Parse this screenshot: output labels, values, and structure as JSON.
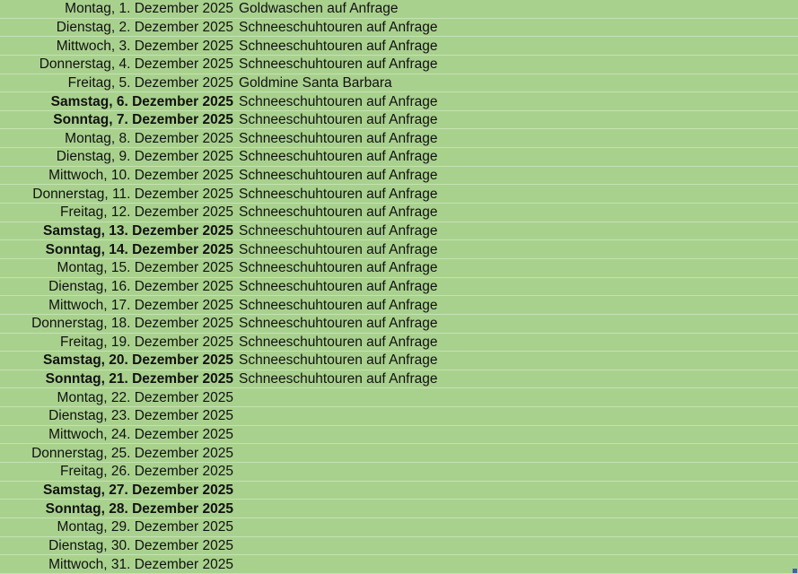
{
  "rows": [
    {
      "date": "Montag, 1. Dezember 2025",
      "activity": "Goldwaschen auf Anfrage",
      "weekend": false
    },
    {
      "date": "Dienstag, 2. Dezember 2025",
      "activity": "Schneeschuhtouren auf Anfrage",
      "weekend": false
    },
    {
      "date": "Mittwoch, 3. Dezember 2025",
      "activity": "Schneeschuhtouren auf Anfrage",
      "weekend": false
    },
    {
      "date": "Donnerstag, 4. Dezember 2025",
      "activity": "Schneeschuhtouren auf Anfrage",
      "weekend": false
    },
    {
      "date": "Freitag, 5. Dezember 2025",
      "activity": "Goldmine Santa Barbara",
      "weekend": false
    },
    {
      "date": "Samstag, 6. Dezember 2025",
      "activity": "Schneeschuhtouren auf Anfrage",
      "weekend": true
    },
    {
      "date": "Sonntag, 7. Dezember 2025",
      "activity": "Schneeschuhtouren auf Anfrage",
      "weekend": true
    },
    {
      "date": "Montag, 8. Dezember 2025",
      "activity": "Schneeschuhtouren auf Anfrage",
      "weekend": false
    },
    {
      "date": "Dienstag, 9. Dezember 2025",
      "activity": "Schneeschuhtouren auf Anfrage",
      "weekend": false
    },
    {
      "date": "Mittwoch, 10. Dezember 2025",
      "activity": "Schneeschuhtouren auf Anfrage",
      "weekend": false
    },
    {
      "date": "Donnerstag, 11. Dezember 2025",
      "activity": "Schneeschuhtouren auf Anfrage",
      "weekend": false
    },
    {
      "date": "Freitag, 12. Dezember 2025",
      "activity": "Schneeschuhtouren auf Anfrage",
      "weekend": false
    },
    {
      "date": "Samstag, 13. Dezember 2025",
      "activity": "Schneeschuhtouren auf Anfrage",
      "weekend": true
    },
    {
      "date": "Sonntag, 14. Dezember 2025",
      "activity": "Schneeschuhtouren auf Anfrage",
      "weekend": true
    },
    {
      "date": "Montag, 15. Dezember 2025",
      "activity": "Schneeschuhtouren auf Anfrage",
      "weekend": false
    },
    {
      "date": "Dienstag, 16. Dezember 2025",
      "activity": "Schneeschuhtouren auf Anfrage",
      "weekend": false
    },
    {
      "date": "Mittwoch, 17. Dezember 2025",
      "activity": "Schneeschuhtouren auf Anfrage",
      "weekend": false
    },
    {
      "date": "Donnerstag, 18. Dezember 2025",
      "activity": "Schneeschuhtouren auf Anfrage",
      "weekend": false
    },
    {
      "date": "Freitag, 19. Dezember 2025",
      "activity": "Schneeschuhtouren auf Anfrage",
      "weekend": false
    },
    {
      "date": "Samstag, 20. Dezember 2025",
      "activity": "Schneeschuhtouren auf Anfrage",
      "weekend": true
    },
    {
      "date": "Sonntag, 21. Dezember 2025",
      "activity": "Schneeschuhtouren auf Anfrage",
      "weekend": true
    },
    {
      "date": "Montag, 22. Dezember 2025",
      "activity": "",
      "weekend": false
    },
    {
      "date": "Dienstag, 23. Dezember 2025",
      "activity": "",
      "weekend": false
    },
    {
      "date": "Mittwoch, 24. Dezember 2025",
      "activity": "",
      "weekend": false
    },
    {
      "date": "Donnerstag, 25. Dezember 2025",
      "activity": "",
      "weekend": false
    },
    {
      "date": "Freitag, 26. Dezember 2025",
      "activity": "",
      "weekend": false
    },
    {
      "date": "Samstag, 27. Dezember 2025",
      "activity": "",
      "weekend": true
    },
    {
      "date": "Sonntag, 28. Dezember 2025",
      "activity": "",
      "weekend": true
    },
    {
      "date": "Montag, 29. Dezember 2025",
      "activity": "",
      "weekend": false
    },
    {
      "date": "Dienstag, 30. Dezember 2025",
      "activity": "",
      "weekend": false
    },
    {
      "date": "Mittwoch, 31. Dezember 2025",
      "activity": "",
      "weekend": false
    }
  ],
  "colors": {
    "background": "#a9d18e",
    "gridline": "#c5e2b2"
  }
}
